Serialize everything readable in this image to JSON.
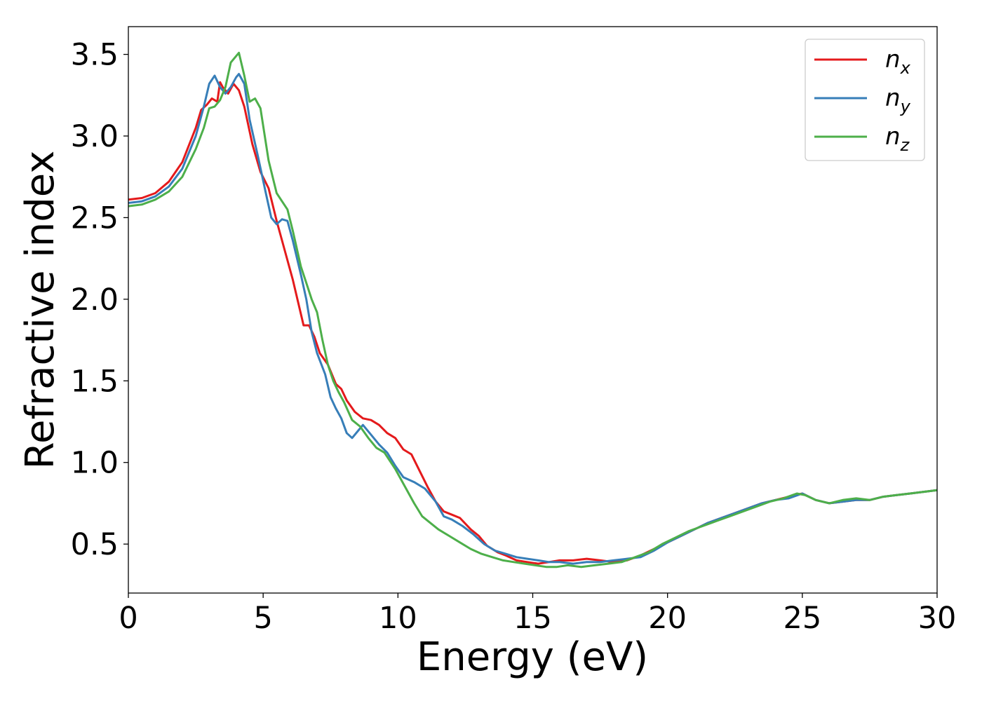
{
  "chart_data": {
    "type": "line",
    "title": "",
    "xlabel": "Energy (eV)",
    "ylabel": "Refractive index",
    "xlim": [
      0,
      30
    ],
    "ylim": [
      0.2,
      3.67
    ],
    "xticks": [
      0,
      5,
      10,
      15,
      20,
      25,
      30
    ],
    "yticks": [
      0.5,
      1.0,
      1.5,
      2.0,
      2.5,
      3.0,
      3.5
    ],
    "xtick_labels": [
      "0",
      "5",
      "10",
      "15",
      "20",
      "25",
      "30"
    ],
    "ytick_labels": [
      "0.5",
      "1.0",
      "1.5",
      "2.0",
      "2.5",
      "3.0",
      "3.5"
    ],
    "grid": false,
    "legend_position": "top-right",
    "series": [
      {
        "name": "n",
        "subscript": "x",
        "color": "#e41a1c",
        "points": [
          [
            0,
            2.61
          ],
          [
            0.5,
            2.62
          ],
          [
            1.0,
            2.65
          ],
          [
            1.5,
            2.72
          ],
          [
            2.0,
            2.84
          ],
          [
            2.5,
            3.05
          ],
          [
            2.7,
            3.16
          ],
          [
            2.9,
            3.19
          ],
          [
            3.1,
            3.23
          ],
          [
            3.3,
            3.21
          ],
          [
            3.4,
            3.33
          ],
          [
            3.5,
            3.3
          ],
          [
            3.7,
            3.26
          ],
          [
            3.9,
            3.32
          ],
          [
            4.1,
            3.28
          ],
          [
            4.3,
            3.18
          ],
          [
            4.6,
            2.95
          ],
          [
            4.9,
            2.78
          ],
          [
            5.2,
            2.68
          ],
          [
            5.5,
            2.48
          ],
          [
            5.8,
            2.3
          ],
          [
            6.1,
            2.12
          ],
          [
            6.3,
            1.98
          ],
          [
            6.5,
            1.84
          ],
          [
            6.7,
            1.84
          ],
          [
            6.9,
            1.77
          ],
          [
            7.1,
            1.67
          ],
          [
            7.4,
            1.6
          ],
          [
            7.7,
            1.48
          ],
          [
            7.9,
            1.45
          ],
          [
            8.1,
            1.38
          ],
          [
            8.4,
            1.31
          ],
          [
            8.7,
            1.27
          ],
          [
            9.0,
            1.26
          ],
          [
            9.3,
            1.23
          ],
          [
            9.6,
            1.18
          ],
          [
            9.9,
            1.15
          ],
          [
            10.2,
            1.08
          ],
          [
            10.5,
            1.05
          ],
          [
            10.8,
            0.95
          ],
          [
            11.1,
            0.85
          ],
          [
            11.4,
            0.76
          ],
          [
            11.7,
            0.7
          ],
          [
            12.0,
            0.68
          ],
          [
            12.3,
            0.66
          ],
          [
            12.7,
            0.59
          ],
          [
            13.0,
            0.55
          ],
          [
            13.3,
            0.49
          ],
          [
            13.7,
            0.45
          ],
          [
            14.0,
            0.43
          ],
          [
            14.4,
            0.4
          ],
          [
            14.8,
            0.39
          ],
          [
            15.2,
            0.38
          ],
          [
            15.6,
            0.39
          ],
          [
            16.0,
            0.4
          ],
          [
            16.5,
            0.4
          ],
          [
            17.0,
            0.41
          ],
          [
            17.5,
            0.4
          ],
          [
            18.0,
            0.39
          ],
          [
            18.5,
            0.4
          ],
          [
            19.0,
            0.43
          ],
          [
            19.5,
            0.47
          ],
          [
            20.0,
            0.51
          ],
          [
            20.5,
            0.55
          ],
          [
            21.0,
            0.59
          ],
          [
            21.5,
            0.63
          ],
          [
            22.0,
            0.66
          ],
          [
            22.5,
            0.69
          ],
          [
            23.0,
            0.72
          ],
          [
            23.5,
            0.75
          ],
          [
            24.0,
            0.77
          ],
          [
            24.5,
            0.79
          ],
          [
            25.0,
            0.81
          ],
          [
            25.5,
            0.77
          ],
          [
            26.0,
            0.75
          ],
          [
            26.5,
            0.76
          ],
          [
            27.0,
            0.77
          ],
          [
            27.5,
            0.77
          ],
          [
            28.0,
            0.79
          ],
          [
            28.5,
            0.8
          ],
          [
            29.0,
            0.81
          ],
          [
            29.5,
            0.82
          ],
          [
            30.0,
            0.83
          ]
        ]
      },
      {
        "name": "n",
        "subscript": "y",
        "color": "#377eb8",
        "points": [
          [
            0,
            2.59
          ],
          [
            0.5,
            2.6
          ],
          [
            1.0,
            2.63
          ],
          [
            1.5,
            2.69
          ],
          [
            2.0,
            2.8
          ],
          [
            2.5,
            3.0
          ],
          [
            2.8,
            3.18
          ],
          [
            3.0,
            3.32
          ],
          [
            3.2,
            3.37
          ],
          [
            3.4,
            3.3
          ],
          [
            3.6,
            3.26
          ],
          [
            3.8,
            3.3
          ],
          [
            4.0,
            3.36
          ],
          [
            4.1,
            3.38
          ],
          [
            4.3,
            3.32
          ],
          [
            4.5,
            3.1
          ],
          [
            4.8,
            2.88
          ],
          [
            5.1,
            2.65
          ],
          [
            5.3,
            2.5
          ],
          [
            5.5,
            2.46
          ],
          [
            5.7,
            2.49
          ],
          [
            5.9,
            2.48
          ],
          [
            6.1,
            2.36
          ],
          [
            6.4,
            2.15
          ],
          [
            6.6,
            2.0
          ],
          [
            6.8,
            1.8
          ],
          [
            7.0,
            1.67
          ],
          [
            7.3,
            1.54
          ],
          [
            7.5,
            1.4
          ],
          [
            7.7,
            1.33
          ],
          [
            7.9,
            1.27
          ],
          [
            8.1,
            1.18
          ],
          [
            8.3,
            1.15
          ],
          [
            8.5,
            1.19
          ],
          [
            8.7,
            1.23
          ],
          [
            9.0,
            1.17
          ],
          [
            9.3,
            1.11
          ],
          [
            9.6,
            1.06
          ],
          [
            9.9,
            0.98
          ],
          [
            10.2,
            0.91
          ],
          [
            10.6,
            0.88
          ],
          [
            11.0,
            0.84
          ],
          [
            11.4,
            0.76
          ],
          [
            11.7,
            0.67
          ],
          [
            12.0,
            0.65
          ],
          [
            12.4,
            0.61
          ],
          [
            12.8,
            0.56
          ],
          [
            13.2,
            0.5
          ],
          [
            13.6,
            0.46
          ],
          [
            14.0,
            0.44
          ],
          [
            14.4,
            0.42
          ],
          [
            14.8,
            0.41
          ],
          [
            15.2,
            0.4
          ],
          [
            15.6,
            0.39
          ],
          [
            16.0,
            0.39
          ],
          [
            16.5,
            0.38
          ],
          [
            17.0,
            0.39
          ],
          [
            17.5,
            0.39
          ],
          [
            18.0,
            0.4
          ],
          [
            18.5,
            0.41
          ],
          [
            19.0,
            0.42
          ],
          [
            19.5,
            0.46
          ],
          [
            20.0,
            0.51
          ],
          [
            20.5,
            0.55
          ],
          [
            21.0,
            0.59
          ],
          [
            21.5,
            0.63
          ],
          [
            22.0,
            0.66
          ],
          [
            22.5,
            0.69
          ],
          [
            23.0,
            0.72
          ],
          [
            23.5,
            0.75
          ],
          [
            24.0,
            0.77
          ],
          [
            24.5,
            0.78
          ],
          [
            25.0,
            0.81
          ],
          [
            25.5,
            0.77
          ],
          [
            26.0,
            0.75
          ],
          [
            26.5,
            0.76
          ],
          [
            27.0,
            0.77
          ],
          [
            27.5,
            0.77
          ],
          [
            28.0,
            0.79
          ],
          [
            28.5,
            0.8
          ],
          [
            29.0,
            0.81
          ],
          [
            29.5,
            0.82
          ],
          [
            30.0,
            0.83
          ]
        ]
      },
      {
        "name": "n",
        "subscript": "z",
        "color": "#4daf4a",
        "points": [
          [
            0,
            2.57
          ],
          [
            0.5,
            2.58
          ],
          [
            1.0,
            2.61
          ],
          [
            1.5,
            2.66
          ],
          [
            2.0,
            2.75
          ],
          [
            2.5,
            2.92
          ],
          [
            2.8,
            3.05
          ],
          [
            3.0,
            3.17
          ],
          [
            3.2,
            3.18
          ],
          [
            3.4,
            3.22
          ],
          [
            3.6,
            3.3
          ],
          [
            3.8,
            3.45
          ],
          [
            4.0,
            3.49
          ],
          [
            4.1,
            3.51
          ],
          [
            4.3,
            3.37
          ],
          [
            4.5,
            3.21
          ],
          [
            4.7,
            3.23
          ],
          [
            4.9,
            3.17
          ],
          [
            5.2,
            2.85
          ],
          [
            5.5,
            2.65
          ],
          [
            5.7,
            2.6
          ],
          [
            5.9,
            2.55
          ],
          [
            6.1,
            2.42
          ],
          [
            6.4,
            2.2
          ],
          [
            6.6,
            2.1
          ],
          [
            6.8,
            2.0
          ],
          [
            7.0,
            1.92
          ],
          [
            7.2,
            1.75
          ],
          [
            7.4,
            1.6
          ],
          [
            7.6,
            1.5
          ],
          [
            7.8,
            1.43
          ],
          [
            8.0,
            1.37
          ],
          [
            8.3,
            1.26
          ],
          [
            8.6,
            1.22
          ],
          [
            8.9,
            1.15
          ],
          [
            9.2,
            1.09
          ],
          [
            9.5,
            1.06
          ],
          [
            9.9,
            0.96
          ],
          [
            10.3,
            0.84
          ],
          [
            10.6,
            0.75
          ],
          [
            10.9,
            0.67
          ],
          [
            11.2,
            0.63
          ],
          [
            11.5,
            0.59
          ],
          [
            11.9,
            0.55
          ],
          [
            12.3,
            0.51
          ],
          [
            12.7,
            0.47
          ],
          [
            13.1,
            0.44
          ],
          [
            13.5,
            0.42
          ],
          [
            13.9,
            0.4
          ],
          [
            14.3,
            0.39
          ],
          [
            14.7,
            0.38
          ],
          [
            15.1,
            0.37
          ],
          [
            15.5,
            0.36
          ],
          [
            15.9,
            0.36
          ],
          [
            16.3,
            0.37
          ],
          [
            16.8,
            0.36
          ],
          [
            17.3,
            0.37
          ],
          [
            17.8,
            0.38
          ],
          [
            18.3,
            0.39
          ],
          [
            18.8,
            0.42
          ],
          [
            19.3,
            0.45
          ],
          [
            19.8,
            0.5
          ],
          [
            20.3,
            0.54
          ],
          [
            20.8,
            0.58
          ],
          [
            21.3,
            0.61
          ],
          [
            21.8,
            0.64
          ],
          [
            22.3,
            0.67
          ],
          [
            22.8,
            0.7
          ],
          [
            23.3,
            0.73
          ],
          [
            23.8,
            0.76
          ],
          [
            24.3,
            0.78
          ],
          [
            24.8,
            0.81
          ],
          [
            25.1,
            0.8
          ],
          [
            25.5,
            0.77
          ],
          [
            26.0,
            0.75
          ],
          [
            26.5,
            0.77
          ],
          [
            27.0,
            0.78
          ],
          [
            27.5,
            0.77
          ],
          [
            28.0,
            0.79
          ],
          [
            28.5,
            0.8
          ],
          [
            29.0,
            0.81
          ],
          [
            29.5,
            0.82
          ],
          [
            30.0,
            0.83
          ]
        ]
      }
    ]
  }
}
